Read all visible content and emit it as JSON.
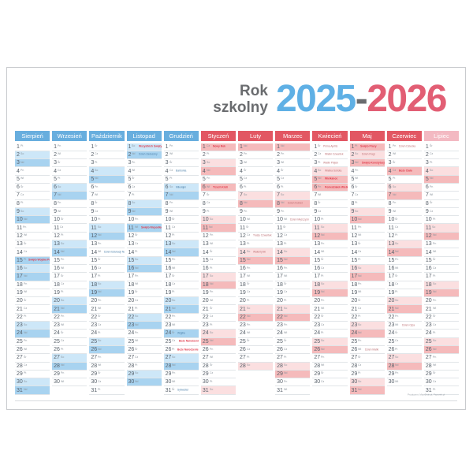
{
  "title": {
    "line1": "Rok",
    "line2": "szkolny",
    "year_start": "2025",
    "separator": "-",
    "year_end": "2026"
  },
  "footer": {
    "credit": "Producent: MaxiDruk.pl, Pazurek.pl"
  },
  "weekdays": [
    "Pn",
    "Wt",
    "Śr",
    "Cz",
    "Pt",
    "So",
    "Nd"
  ],
  "colors": {
    "header_blue": "#68aede",
    "header_red": "#e25763",
    "header_red_light": "#f3b9c2",
    "saturday_blue": "#cde7f8",
    "sunday_blue": "#a8d3f0",
    "saturday_red": "#fbdfe0",
    "sunday_red": "#f5babb",
    "holiday_text": "#e0394a",
    "year_blue": "#5fb0e5",
    "year_red": "#e25e74",
    "title_gray": "#6a6c6f"
  },
  "months": [
    {
      "name": "Sierpień",
      "theme": "blue",
      "days": 31,
      "first_dow": 4,
      "special": {
        "15": {
          "label": "Święto Wojska Polskiego",
          "red": true,
          "tint": "strong"
        }
      }
    },
    {
      "name": "Wrzesień",
      "theme": "blue",
      "days": 30,
      "first_dow": 0,
      "special": {}
    },
    {
      "name": "Październik",
      "theme": "blue",
      "days": 31,
      "first_dow": 2,
      "special": {
        "14": {
          "label": "Dzień Edukacji Narodowej"
        }
      }
    },
    {
      "name": "Listopad",
      "theme": "blue",
      "days": 30,
      "first_dow": 5,
      "special": {
        "1": {
          "label": "Wszystkich Świętych",
          "red": true
        },
        "2": {
          "label": "Dzień Zaduszny"
        },
        "11": {
          "label": "Święto Niepodległości",
          "red": true,
          "tint": "strong"
        }
      }
    },
    {
      "name": "Grudzień",
      "theme": "blue",
      "days": 31,
      "first_dow": 0,
      "special": {
        "4": {
          "label": "Barbórka"
        },
        "6": {
          "label": "Mikołajki"
        },
        "24": {
          "label": "Wigilia",
          "tint": "strong"
        },
        "25": {
          "label": "Boże Narodzenie",
          "red": true
        },
        "26": {
          "label": "Boże Narodzenie",
          "red": true
        },
        "31": {
          "label": "Sylwester"
        }
      }
    },
    {
      "name": "Styczeń",
      "theme": "red",
      "days": 31,
      "first_dow": 3,
      "special": {
        "1": {
          "label": "Nowy Rok",
          "red": true,
          "tint": "strong"
        },
        "6": {
          "label": "Trzech Króli",
          "red": true,
          "tint": "strong"
        }
      }
    },
    {
      "name": "Luty",
      "theme": "red",
      "days": 28,
      "first_dow": 6,
      "special": {
        "12": {
          "label": "Tłusty Czwartek"
        },
        "14": {
          "label": "Walentynki"
        }
      }
    },
    {
      "name": "Marzec",
      "theme": "red",
      "days": 31,
      "first_dow": 6,
      "special": {
        "8": {
          "label": "Dzień Kobiet"
        },
        "10": {
          "label": "Dzień Mężczyzn"
        }
      }
    },
    {
      "name": "Kwiecień",
      "theme": "red",
      "days": 30,
      "first_dow": 2,
      "special": {
        "1": {
          "label": "Prima Aprilis"
        },
        "2": {
          "label": "Wielki Czwartek"
        },
        "3": {
          "label": "Wielki Piątek"
        },
        "4": {
          "label": "Wielka Sobota"
        },
        "5": {
          "label": "Wielkanoc",
          "red": true
        },
        "6": {
          "label": "Poniedziałek Wielkanocny",
          "red": true,
          "tint": "strong"
        }
      }
    },
    {
      "name": "Maj",
      "theme": "red",
      "days": 31,
      "first_dow": 4,
      "special": {
        "1": {
          "label": "Święto Pracy",
          "red": true,
          "tint": "strong"
        },
        "2": {
          "label": "Dzień Flagi"
        },
        "3": {
          "label": "Święto Konstytucji 3 Maja",
          "red": true
        },
        "26": {
          "label": "Dzień Matki"
        }
      }
    },
    {
      "name": "Czerwiec",
      "theme": "red",
      "days": 30,
      "first_dow": 0,
      "special": {
        "1": {
          "label": "Dzień Dziecka"
        },
        "4": {
          "label": "Boże Ciało",
          "red": true,
          "tint": "strong"
        },
        "23": {
          "label": "Dzień Ojca"
        }
      }
    },
    {
      "name": "Lipiec",
      "theme": "red",
      "header_light": true,
      "days": 31,
      "first_dow": 2,
      "special": {}
    }
  ]
}
